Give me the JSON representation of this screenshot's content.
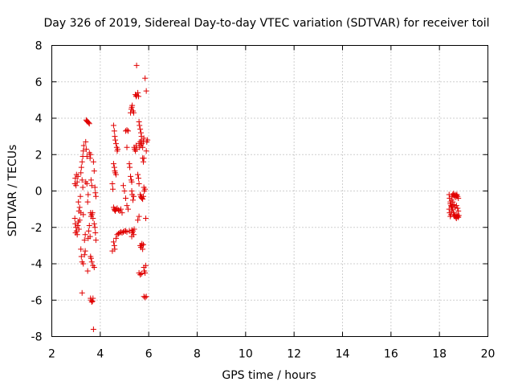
{
  "chart_data": {
    "type": "scatter",
    "title": "Day 326 of 2019, Sidereal Day-to-day VTEC variation (SDTVAR) for receiver toil",
    "xlabel": "GPS time / hours",
    "ylabel": "SDTVAR / TECUs",
    "xlim": [
      2,
      20
    ],
    "ylim": [
      -8,
      8
    ],
    "xticks": [
      2,
      4,
      6,
      8,
      10,
      12,
      14,
      16,
      18,
      20
    ],
    "yticks": [
      -8,
      -6,
      -4,
      -2,
      0,
      2,
      4,
      6,
      8
    ],
    "grid": true,
    "marker": "+",
    "color": "#e00000",
    "series": [
      {
        "name": "SDTVAR",
        "points": [
          [
            2.95,
            0.4
          ],
          [
            2.97,
            0.7
          ],
          [
            3.0,
            0.3
          ],
          [
            3.02,
            0.9
          ],
          [
            3.05,
            0.5
          ],
          [
            3.08,
            0.8
          ],
          [
            2.95,
            -1.5
          ],
          [
            2.97,
            -1.8
          ],
          [
            3.0,
            -2.0
          ],
          [
            3.02,
            -2.2
          ],
          [
            3.05,
            -2.4
          ],
          [
            3.07,
            -1.9
          ],
          [
            3.1,
            -1.7
          ],
          [
            3.12,
            -2.1
          ],
          [
            3.15,
            -1.6
          ],
          [
            2.98,
            -2.3
          ],
          [
            3.1,
            -0.6
          ],
          [
            3.12,
            -1.1
          ],
          [
            3.15,
            -0.9
          ],
          [
            3.18,
            -0.3
          ],
          [
            3.2,
            -1.2
          ],
          [
            3.2,
            1.0
          ],
          [
            3.22,
            1.3
          ],
          [
            3.25,
            1.6
          ],
          [
            3.28,
            1.9
          ],
          [
            3.3,
            2.2
          ],
          [
            3.32,
            2.5
          ],
          [
            3.25,
            0.6
          ],
          [
            3.28,
            0.2
          ],
          [
            3.2,
            -3.2
          ],
          [
            3.22,
            -3.6
          ],
          [
            3.25,
            -3.9
          ],
          [
            3.3,
            -4.0
          ],
          [
            3.35,
            -3.5
          ],
          [
            3.38,
            -3.3
          ],
          [
            3.25,
            -5.6
          ],
          [
            3.35,
            -2.7
          ],
          [
            3.38,
            -2.4
          ],
          [
            3.3,
            -1.3
          ],
          [
            3.4,
            2.7
          ],
          [
            3.42,
            2.3
          ],
          [
            3.45,
            1.9
          ],
          [
            3.4,
            0.5
          ],
          [
            3.45,
            0.4
          ],
          [
            3.48,
            -0.6
          ],
          [
            3.5,
            -0.2
          ],
          [
            3.42,
            3.9
          ],
          [
            3.45,
            3.85
          ],
          [
            3.48,
            3.8
          ],
          [
            3.52,
            3.75
          ],
          [
            3.55,
            3.7
          ],
          [
            3.5,
            -2.6
          ],
          [
            3.52,
            -2.2
          ],
          [
            3.55,
            -1.9
          ],
          [
            3.58,
            -2.5
          ],
          [
            3.48,
            -4.4
          ],
          [
            3.55,
            2.1
          ],
          [
            3.58,
            1.8
          ],
          [
            3.6,
            2.0
          ],
          [
            3.62,
            0.6
          ],
          [
            3.65,
            0.3
          ],
          [
            3.6,
            -1.2
          ],
          [
            3.62,
            -1.4
          ],
          [
            3.65,
            -1.3
          ],
          [
            3.68,
            -1.2
          ],
          [
            3.7,
            -1.5
          ],
          [
            3.6,
            -3.6
          ],
          [
            3.62,
            -3.7
          ],
          [
            3.65,
            -3.9
          ],
          [
            3.7,
            -4.1
          ],
          [
            3.75,
            -4.2
          ],
          [
            3.6,
            -5.9
          ],
          [
            3.62,
            -6.0
          ],
          [
            3.65,
            -6.1
          ],
          [
            3.68,
            -6.05
          ],
          [
            3.7,
            -5.9
          ],
          [
            3.72,
            1.6
          ],
          [
            3.75,
            1.1
          ],
          [
            3.78,
            0.2
          ],
          [
            3.8,
            -0.1
          ],
          [
            3.82,
            -0.3
          ],
          [
            3.75,
            -1.8
          ],
          [
            3.78,
            -2.0
          ],
          [
            3.8,
            -2.3
          ],
          [
            3.82,
            -2.7
          ],
          [
            3.72,
            -7.6
          ],
          [
            4.55,
            3.6
          ],
          [
            4.58,
            3.3
          ],
          [
            4.6,
            3.0
          ],
          [
            4.62,
            2.8
          ],
          [
            4.65,
            2.6
          ],
          [
            4.68,
            2.4
          ],
          [
            4.7,
            2.2
          ],
          [
            4.72,
            2.3
          ],
          [
            4.55,
            1.5
          ],
          [
            4.58,
            1.3
          ],
          [
            4.6,
            1.1
          ],
          [
            4.62,
            1.0
          ],
          [
            4.65,
            0.9
          ],
          [
            4.5,
            0.4
          ],
          [
            4.52,
            0.1
          ],
          [
            4.55,
            -0.9
          ],
          [
            4.58,
            -1.0
          ],
          [
            4.6,
            -1.05
          ],
          [
            4.62,
            -1.1
          ],
          [
            4.65,
            -1.0
          ],
          [
            4.7,
            -0.95
          ],
          [
            4.75,
            -1.05
          ],
          [
            4.8,
            -1.1
          ],
          [
            4.85,
            -1.0
          ],
          [
            4.9,
            -1.2
          ],
          [
            4.55,
            -2.8
          ],
          [
            4.58,
            -3.0
          ],
          [
            4.6,
            -3.2
          ],
          [
            4.5,
            -3.3
          ],
          [
            4.65,
            -2.6
          ],
          [
            4.7,
            -2.4
          ],
          [
            4.75,
            -2.35
          ],
          [
            4.8,
            -2.3
          ],
          [
            4.85,
            -2.25
          ],
          [
            4.9,
            -2.3
          ],
          [
            4.95,
            -2.25
          ],
          [
            5.0,
            -2.2
          ],
          [
            5.05,
            -2.2
          ],
          [
            5.1,
            -2.25
          ],
          [
            5.2,
            -2.2
          ],
          [
            5.3,
            -2.15
          ],
          [
            4.95,
            0.3
          ],
          [
            5.0,
            0.0
          ],
          [
            5.05,
            -0.4
          ],
          [
            5.1,
            -0.8
          ],
          [
            5.15,
            -1.0
          ],
          [
            5.05,
            3.3
          ],
          [
            5.1,
            3.35
          ],
          [
            5.15,
            3.3
          ],
          [
            5.1,
            2.4
          ],
          [
            5.2,
            1.5
          ],
          [
            5.22,
            1.3
          ],
          [
            5.25,
            0.8
          ],
          [
            5.28,
            0.6
          ],
          [
            5.3,
            0.5
          ],
          [
            5.3,
            0.0
          ],
          [
            5.32,
            -0.2
          ],
          [
            5.35,
            -0.5
          ],
          [
            5.38,
            -0.3
          ],
          [
            5.3,
            -2.5
          ],
          [
            5.32,
            -2.3
          ],
          [
            5.35,
            -2.2
          ],
          [
            5.38,
            -2.4
          ],
          [
            5.4,
            -2.1
          ],
          [
            5.25,
            4.3
          ],
          [
            5.28,
            4.5
          ],
          [
            5.3,
            4.6
          ],
          [
            5.32,
            4.7
          ],
          [
            5.35,
            4.4
          ],
          [
            5.38,
            4.3
          ],
          [
            5.4,
            2.4
          ],
          [
            5.42,
            2.3
          ],
          [
            5.45,
            2.2
          ],
          [
            5.48,
            2.5
          ],
          [
            5.5,
            2.3
          ],
          [
            5.45,
            5.3
          ],
          [
            5.48,
            5.2
          ],
          [
            5.5,
            5.25
          ],
          [
            5.55,
            5.4
          ],
          [
            5.58,
            5.2
          ],
          [
            5.5,
            6.9
          ],
          [
            5.55,
            0.9
          ],
          [
            5.58,
            0.7
          ],
          [
            5.6,
            0.4
          ],
          [
            5.55,
            -1.6
          ],
          [
            5.6,
            -1.4
          ],
          [
            5.6,
            2.6
          ],
          [
            5.62,
            2.4
          ],
          [
            5.65,
            2.7
          ],
          [
            5.68,
            2.5
          ],
          [
            5.7,
            2.8
          ],
          [
            5.72,
            2.6
          ],
          [
            5.75,
            2.4
          ],
          [
            5.78,
            2.7
          ],
          [
            5.8,
            2.9
          ],
          [
            5.6,
            3.8
          ],
          [
            5.62,
            3.6
          ],
          [
            5.65,
            3.4
          ],
          [
            5.68,
            3.2
          ],
          [
            5.7,
            3.0
          ],
          [
            5.65,
            -0.2
          ],
          [
            5.68,
            -0.3
          ],
          [
            5.7,
            -0.35
          ],
          [
            5.72,
            -0.4
          ],
          [
            5.75,
            -0.45
          ],
          [
            5.78,
            -0.3
          ],
          [
            5.65,
            -3.0
          ],
          [
            5.68,
            -3.1
          ],
          [
            5.7,
            -3.0
          ],
          [
            5.72,
            -2.9
          ],
          [
            5.75,
            -3.2
          ],
          [
            5.78,
            -2.95
          ],
          [
            5.6,
            -4.5
          ],
          [
            5.65,
            -4.6
          ],
          [
            5.7,
            -4.55
          ],
          [
            5.75,
            1.8
          ],
          [
            5.78,
            1.6
          ],
          [
            5.8,
            1.8
          ],
          [
            5.8,
            0.2
          ],
          [
            5.82,
            0.0
          ],
          [
            5.85,
            0.1
          ],
          [
            5.8,
            -4.2
          ],
          [
            5.82,
            -4.4
          ],
          [
            5.85,
            -4.5
          ],
          [
            5.88,
            -4.1
          ],
          [
            5.8,
            -5.8
          ],
          [
            5.85,
            -5.85
          ],
          [
            5.9,
            -5.8
          ],
          [
            5.85,
            6.2
          ],
          [
            5.9,
            5.5
          ],
          [
            5.88,
            -1.5
          ],
          [
            5.9,
            2.2
          ],
          [
            5.92,
            2.7
          ],
          [
            5.95,
            2.8
          ],
          [
            18.4,
            -0.2
          ],
          [
            18.42,
            -0.4
          ],
          [
            18.45,
            -0.6
          ],
          [
            18.48,
            -0.8
          ],
          [
            18.5,
            -0.5
          ],
          [
            18.52,
            -0.3
          ],
          [
            18.55,
            -0.2
          ],
          [
            18.58,
            -0.15
          ],
          [
            18.6,
            -0.25
          ],
          [
            18.62,
            -0.3
          ],
          [
            18.65,
            -0.2
          ],
          [
            18.68,
            -0.35
          ],
          [
            18.7,
            -0.25
          ],
          [
            18.72,
            -0.2
          ],
          [
            18.75,
            -0.3
          ],
          [
            18.78,
            -0.4
          ],
          [
            18.4,
            -1.0
          ],
          [
            18.42,
            -1.2
          ],
          [
            18.45,
            -1.4
          ],
          [
            18.48,
            -1.3
          ],
          [
            18.5,
            -1.1
          ],
          [
            18.52,
            -0.9
          ],
          [
            18.55,
            -1.0
          ],
          [
            18.58,
            -1.2
          ],
          [
            18.6,
            -1.3
          ],
          [
            18.62,
            -1.4
          ],
          [
            18.65,
            -1.35
          ],
          [
            18.68,
            -1.45
          ],
          [
            18.7,
            -1.5
          ],
          [
            18.72,
            -1.3
          ],
          [
            18.75,
            -1.4
          ],
          [
            18.78,
            -1.45
          ],
          [
            18.8,
            -1.35
          ],
          [
            18.45,
            -0.7
          ],
          [
            18.5,
            -0.85
          ],
          [
            18.55,
            -0.6
          ],
          [
            18.6,
            -0.75
          ],
          [
            18.65,
            -0.9
          ],
          [
            18.7,
            -0.8
          ],
          [
            18.75,
            -0.95
          ],
          [
            18.78,
            -1.1
          ]
        ]
      }
    ]
  }
}
